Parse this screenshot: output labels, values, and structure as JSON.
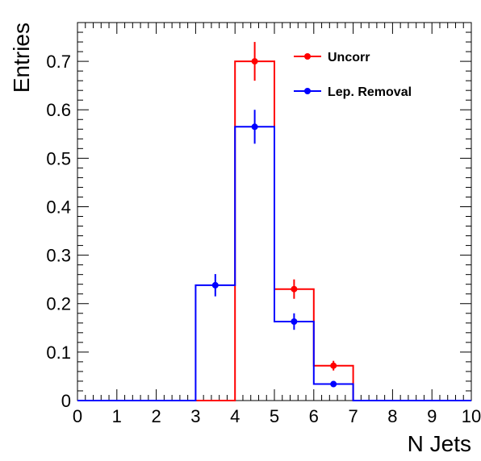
{
  "chart_data": {
    "type": "histogram",
    "xlabel": "N Jets",
    "ylabel": "Entries",
    "xlim": [
      0,
      10
    ],
    "ylim": [
      0,
      0.78
    ],
    "x_ticks": [
      "0",
      "1",
      "2",
      "3",
      "4",
      "5",
      "6",
      "7",
      "8",
      "9",
      "10"
    ],
    "y_ticks": [
      "0",
      "0.1",
      "0.2",
      "0.3",
      "0.4",
      "0.5",
      "0.6",
      "0.7"
    ],
    "bin_edges": [
      0,
      1,
      2,
      3,
      4,
      5,
      6,
      7,
      8,
      9,
      10
    ],
    "grid": false,
    "legend_position": "top-right",
    "series": [
      {
        "name": "Uncorr",
        "color": "#ff0000",
        "values": [
          0,
          0,
          0,
          0,
          0.7,
          0.23,
          0.072,
          0,
          0,
          0
        ],
        "errors": [
          0,
          0,
          0,
          0,
          0.04,
          0.02,
          0.01,
          0,
          0,
          0
        ]
      },
      {
        "name": "Lep. Removal",
        "color": "#0000ff",
        "values": [
          0,
          0,
          0,
          0.238,
          0.565,
          0.163,
          0.034,
          0,
          0,
          0
        ],
        "errors": [
          0,
          0,
          0,
          0.023,
          0.035,
          0.017,
          0.006,
          0,
          0,
          0
        ]
      }
    ]
  }
}
